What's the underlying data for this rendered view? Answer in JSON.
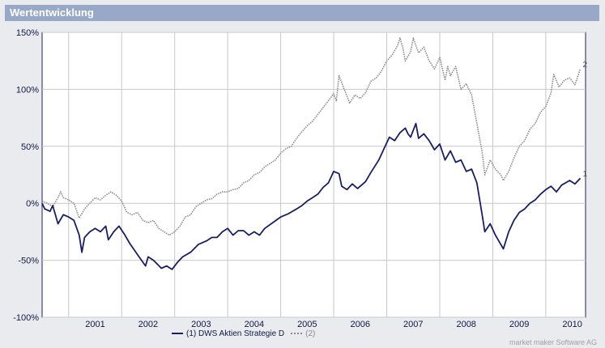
{
  "header": {
    "title": "Wertentwicklung"
  },
  "credit": "market maker Software AG",
  "chart_data": {
    "type": "line",
    "grid": true,
    "yticks": [
      "150%",
      "100%",
      "50%",
      "0%",
      "-50%",
      "-100%"
    ],
    "ylim": [
      -100,
      150
    ],
    "xlim": [
      2000.5,
      2010.75
    ],
    "year_labels": [
      "2001",
      "2002",
      "2003",
      "2004",
      "2005",
      "2006",
      "2007",
      "2008",
      "2009",
      "2010"
    ],
    "legend_position": "bottom-center",
    "series": [
      {
        "name": "(1) DWS Aktien Strategie D",
        "end_label": "1",
        "color": "#1a1f5e",
        "style": "solid",
        "points": [
          [
            2000.5,
            0
          ],
          [
            2000.55,
            -5
          ],
          [
            2000.65,
            -7
          ],
          [
            2000.7,
            -2
          ],
          [
            2000.8,
            -18
          ],
          [
            2000.9,
            -10
          ],
          [
            2001.0,
            -12
          ],
          [
            2001.1,
            -15
          ],
          [
            2001.2,
            -28
          ],
          [
            2001.25,
            -43
          ],
          [
            2001.3,
            -30
          ],
          [
            2001.4,
            -25
          ],
          [
            2001.5,
            -22
          ],
          [
            2001.6,
            -25
          ],
          [
            2001.7,
            -20
          ],
          [
            2001.75,
            -32
          ],
          [
            2001.85,
            -25
          ],
          [
            2001.95,
            -20
          ],
          [
            2002.05,
            -27
          ],
          [
            2002.15,
            -35
          ],
          [
            2002.3,
            -45
          ],
          [
            2002.45,
            -55
          ],
          [
            2002.5,
            -47
          ],
          [
            2002.6,
            -50
          ],
          [
            2002.75,
            -57
          ],
          [
            2002.85,
            -55
          ],
          [
            2002.95,
            -58
          ],
          [
            2003.05,
            -52
          ],
          [
            2003.15,
            -47
          ],
          [
            2003.3,
            -43
          ],
          [
            2003.45,
            -36
          ],
          [
            2003.6,
            -33
          ],
          [
            2003.7,
            -30
          ],
          [
            2003.8,
            -30
          ],
          [
            2003.9,
            -25
          ],
          [
            2004.0,
            -22
          ],
          [
            2004.1,
            -28
          ],
          [
            2004.2,
            -24
          ],
          [
            2004.3,
            -24
          ],
          [
            2004.4,
            -28
          ],
          [
            2004.5,
            -25
          ],
          [
            2004.6,
            -28
          ],
          [
            2004.7,
            -22
          ],
          [
            2004.85,
            -17
          ],
          [
            2005.0,
            -12
          ],
          [
            2005.15,
            -9
          ],
          [
            2005.3,
            -5
          ],
          [
            2005.4,
            -2
          ],
          [
            2005.5,
            2
          ],
          [
            2005.6,
            5
          ],
          [
            2005.7,
            8
          ],
          [
            2005.8,
            14
          ],
          [
            2005.9,
            18
          ],
          [
            2006.0,
            28
          ],
          [
            2006.1,
            26
          ],
          [
            2006.15,
            15
          ],
          [
            2006.25,
            12
          ],
          [
            2006.35,
            17
          ],
          [
            2006.45,
            13
          ],
          [
            2006.6,
            19
          ],
          [
            2006.7,
            27
          ],
          [
            2006.85,
            38
          ],
          [
            2006.95,
            48
          ],
          [
            2007.05,
            58
          ],
          [
            2007.15,
            55
          ],
          [
            2007.25,
            62
          ],
          [
            2007.35,
            66
          ],
          [
            2007.4,
            61
          ],
          [
            2007.45,
            58
          ],
          [
            2007.55,
            70
          ],
          [
            2007.6,
            57
          ],
          [
            2007.7,
            61
          ],
          [
            2007.8,
            55
          ],
          [
            2007.9,
            47
          ],
          [
            2008.0,
            52
          ],
          [
            2008.1,
            38
          ],
          [
            2008.2,
            46
          ],
          [
            2008.3,
            36
          ],
          [
            2008.4,
            38
          ],
          [
            2008.5,
            28
          ],
          [
            2008.6,
            30
          ],
          [
            2008.7,
            18
          ],
          [
            2008.8,
            -10
          ],
          [
            2008.85,
            -25
          ],
          [
            2008.95,
            -18
          ],
          [
            2009.05,
            -28
          ],
          [
            2009.15,
            -36
          ],
          [
            2009.2,
            -40
          ],
          [
            2009.3,
            -25
          ],
          [
            2009.4,
            -15
          ],
          [
            2009.5,
            -8
          ],
          [
            2009.6,
            -5
          ],
          [
            2009.7,
            0
          ],
          [
            2009.8,
            3
          ],
          [
            2009.9,
            8
          ],
          [
            2010.0,
            12
          ],
          [
            2010.1,
            15
          ],
          [
            2010.2,
            10
          ],
          [
            2010.3,
            16
          ],
          [
            2010.45,
            20
          ],
          [
            2010.55,
            17
          ],
          [
            2010.65,
            22
          ]
        ]
      },
      {
        "name": "(2)",
        "end_label": "2",
        "color": "#8a8a8a",
        "style": "dotted",
        "points": [
          [
            2000.5,
            2
          ],
          [
            2000.6,
            0
          ],
          [
            2000.7,
            -3
          ],
          [
            2000.8,
            5
          ],
          [
            2000.85,
            10
          ],
          [
            2000.9,
            5
          ],
          [
            2001.0,
            3
          ],
          [
            2001.1,
            0
          ],
          [
            2001.2,
            -13
          ],
          [
            2001.3,
            -5
          ],
          [
            2001.4,
            0
          ],
          [
            2001.5,
            5
          ],
          [
            2001.6,
            3
          ],
          [
            2001.7,
            7
          ],
          [
            2001.8,
            10
          ],
          [
            2001.9,
            7
          ],
          [
            2002.0,
            2
          ],
          [
            2002.1,
            -8
          ],
          [
            2002.2,
            -10
          ],
          [
            2002.3,
            -8
          ],
          [
            2002.4,
            -15
          ],
          [
            2002.5,
            -17
          ],
          [
            2002.6,
            -15
          ],
          [
            2002.7,
            -22
          ],
          [
            2002.8,
            -25
          ],
          [
            2002.9,
            -28
          ],
          [
            2003.0,
            -25
          ],
          [
            2003.1,
            -20
          ],
          [
            2003.2,
            -12
          ],
          [
            2003.3,
            -10
          ],
          [
            2003.4,
            -3
          ],
          [
            2003.5,
            0
          ],
          [
            2003.6,
            3
          ],
          [
            2003.7,
            4
          ],
          [
            2003.8,
            8
          ],
          [
            2003.9,
            10
          ],
          [
            2004.0,
            10
          ],
          [
            2004.1,
            12
          ],
          [
            2004.2,
            13
          ],
          [
            2004.3,
            18
          ],
          [
            2004.4,
            20
          ],
          [
            2004.5,
            25
          ],
          [
            2004.6,
            27
          ],
          [
            2004.7,
            32
          ],
          [
            2004.8,
            35
          ],
          [
            2004.9,
            38
          ],
          [
            2005.0,
            44
          ],
          [
            2005.1,
            48
          ],
          [
            2005.2,
            50
          ],
          [
            2005.3,
            57
          ],
          [
            2005.4,
            63
          ],
          [
            2005.5,
            68
          ],
          [
            2005.6,
            72
          ],
          [
            2005.7,
            78
          ],
          [
            2005.8,
            84
          ],
          [
            2005.9,
            90
          ],
          [
            2006.0,
            96
          ],
          [
            2006.05,
            90
          ],
          [
            2006.1,
            112
          ],
          [
            2006.2,
            100
          ],
          [
            2006.3,
            88
          ],
          [
            2006.4,
            95
          ],
          [
            2006.5,
            92
          ],
          [
            2006.6,
            97
          ],
          [
            2006.7,
            107
          ],
          [
            2006.8,
            110
          ],
          [
            2006.9,
            116
          ],
          [
            2007.0,
            125
          ],
          [
            2007.1,
            130
          ],
          [
            2007.2,
            138
          ],
          [
            2007.25,
            145
          ],
          [
            2007.3,
            137
          ],
          [
            2007.35,
            125
          ],
          [
            2007.45,
            133
          ],
          [
            2007.5,
            145
          ],
          [
            2007.6,
            132
          ],
          [
            2007.7,
            137
          ],
          [
            2007.8,
            125
          ],
          [
            2007.9,
            118
          ],
          [
            2008.0,
            128
          ],
          [
            2008.1,
            108
          ],
          [
            2008.15,
            120
          ],
          [
            2008.2,
            112
          ],
          [
            2008.3,
            120
          ],
          [
            2008.4,
            100
          ],
          [
            2008.5,
            105
          ],
          [
            2008.6,
            95
          ],
          [
            2008.7,
            70
          ],
          [
            2008.8,
            45
          ],
          [
            2008.85,
            25
          ],
          [
            2008.95,
            38
          ],
          [
            2009.05,
            30
          ],
          [
            2009.15,
            25
          ],
          [
            2009.2,
            20
          ],
          [
            2009.3,
            28
          ],
          [
            2009.4,
            40
          ],
          [
            2009.5,
            50
          ],
          [
            2009.6,
            55
          ],
          [
            2009.7,
            65
          ],
          [
            2009.8,
            70
          ],
          [
            2009.9,
            80
          ],
          [
            2010.0,
            85
          ],
          [
            2010.1,
            97
          ],
          [
            2010.15,
            113
          ],
          [
            2010.25,
            102
          ],
          [
            2010.35,
            108
          ],
          [
            2010.45,
            110
          ],
          [
            2010.55,
            104
          ],
          [
            2010.65,
            118
          ]
        ]
      }
    ]
  }
}
